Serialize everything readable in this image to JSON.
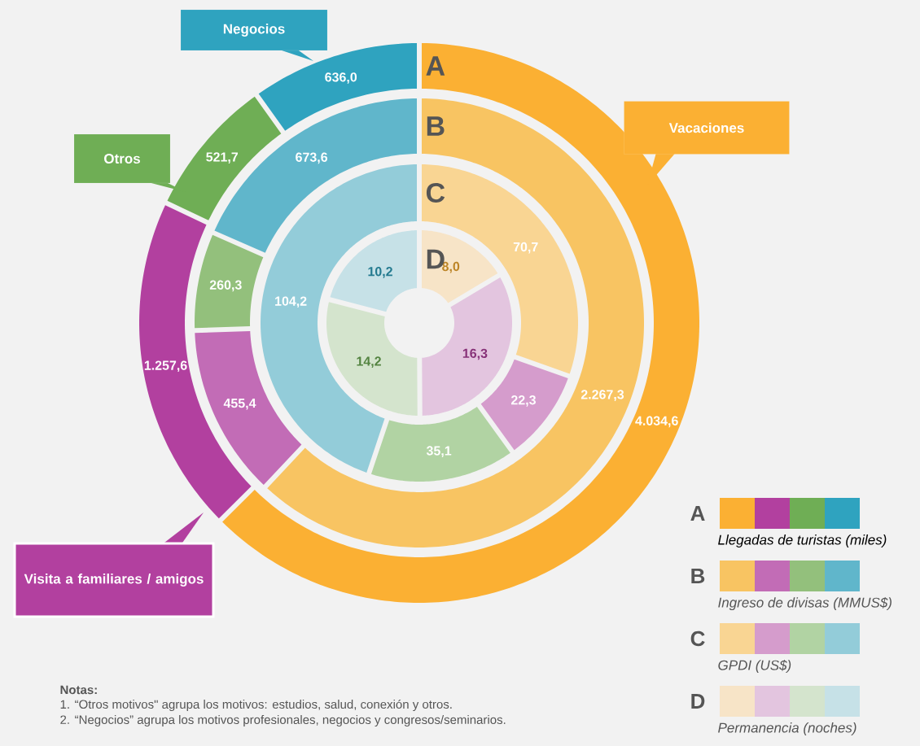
{
  "chart_data": {
    "type": "donut",
    "categories": [
      "Vacaciones",
      "Visita a familiares / amigos",
      "Otros",
      "Negocios"
    ],
    "series": [
      {
        "name": "Llegadas de turistas (miles)",
        "values": [
          4034.6,
          1257.6,
          521.7,
          636.0
        ],
        "value_labels": [
          "4.034,6",
          "1.257,6",
          "521,7",
          "636,0"
        ],
        "colors": [
          "#fbb033",
          "#b2409f",
          "#6fae55",
          "#2fa3bf"
        ]
      },
      {
        "name": "Ingreso de divisas (MMUS$)",
        "values": [
          2267.3,
          455.4,
          260.3,
          673.6
        ],
        "value_labels": [
          "2.267,3",
          "455,4",
          "260,3",
          "673,6"
        ],
        "colors": [
          "#f8c462",
          "#c26cb6",
          "#93c07c",
          "#60b6cb"
        ]
      },
      {
        "name": "GPDI (US$)",
        "values": [
          70.7,
          22.3,
          35.1,
          104.2
        ],
        "value_labels": [
          "70,7",
          "22,3",
          "35,1",
          "104,2"
        ],
        "colors": [
          "#f9d593",
          "#d59ccc",
          "#b1d3a3",
          "#93ccd9"
        ]
      },
      {
        "name": "Permanencia (noches)",
        "values": [
          8.0,
          16.3,
          14.2,
          10.2
        ],
        "value_labels": [
          "8,0",
          "16,3",
          "14,2",
          "10,2"
        ],
        "colors": [
          "#f7e4c7",
          "#e3c5df",
          "#d4e4cd",
          "#c6e1e7"
        ]
      }
    ],
    "annotations": [
      "A",
      "B",
      "C",
      "D",
      "Notas:",
      "1. “Otros motivos\" agrupa los motivos: estudios, salud, conexión y otros.",
      "2. “Negocios” agrupa los motivos profesionales, negocios y congresos/seminarios."
    ],
    "legend": "bottom right"
  }
}
